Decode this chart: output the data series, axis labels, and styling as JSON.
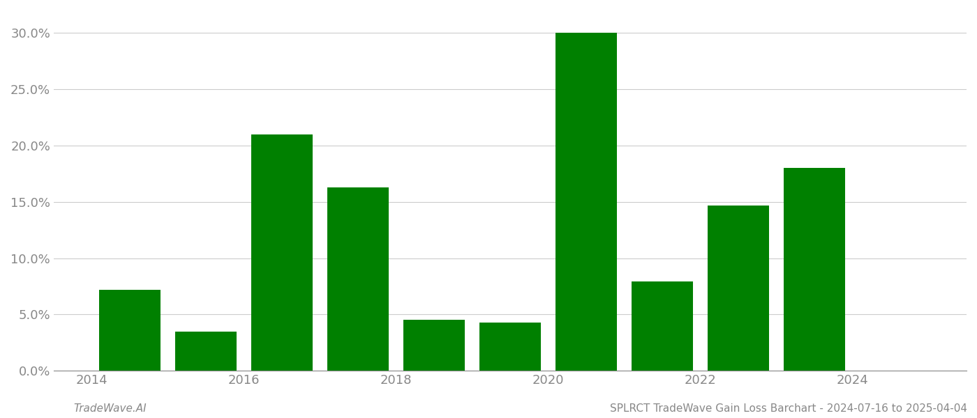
{
  "years": [
    2014,
    2015,
    2016,
    2017,
    2018,
    2019,
    2020,
    2021,
    2022,
    2023
  ],
  "values": [
    0.072,
    0.035,
    0.21,
    0.163,
    0.045,
    0.043,
    0.3,
    0.079,
    0.147,
    0.18
  ],
  "bar_color": "#008000",
  "background_color": "#ffffff",
  "grid_color": "#cccccc",
  "title": "SPLRCT TradeWave Gain Loss Barchart - 2024-07-16 to 2025-04-04",
  "watermark": "TradeWave.AI",
  "ylim": [
    0,
    0.32
  ],
  "yticks": [
    0.0,
    0.05,
    0.1,
    0.15,
    0.2,
    0.25,
    0.3
  ],
  "xtick_positions": [
    2013.5,
    2015.5,
    2017.5,
    2019.5,
    2021.5,
    2023.5
  ],
  "xtick_labels": [
    "2014",
    "2016",
    "2018",
    "2020",
    "2022",
    "2024"
  ],
  "xlim": [
    2013.0,
    2025.0
  ],
  "bar_width": 0.8,
  "title_fontsize": 11,
  "watermark_fontsize": 11,
  "tick_fontsize": 13,
  "tick_color": "#888888"
}
